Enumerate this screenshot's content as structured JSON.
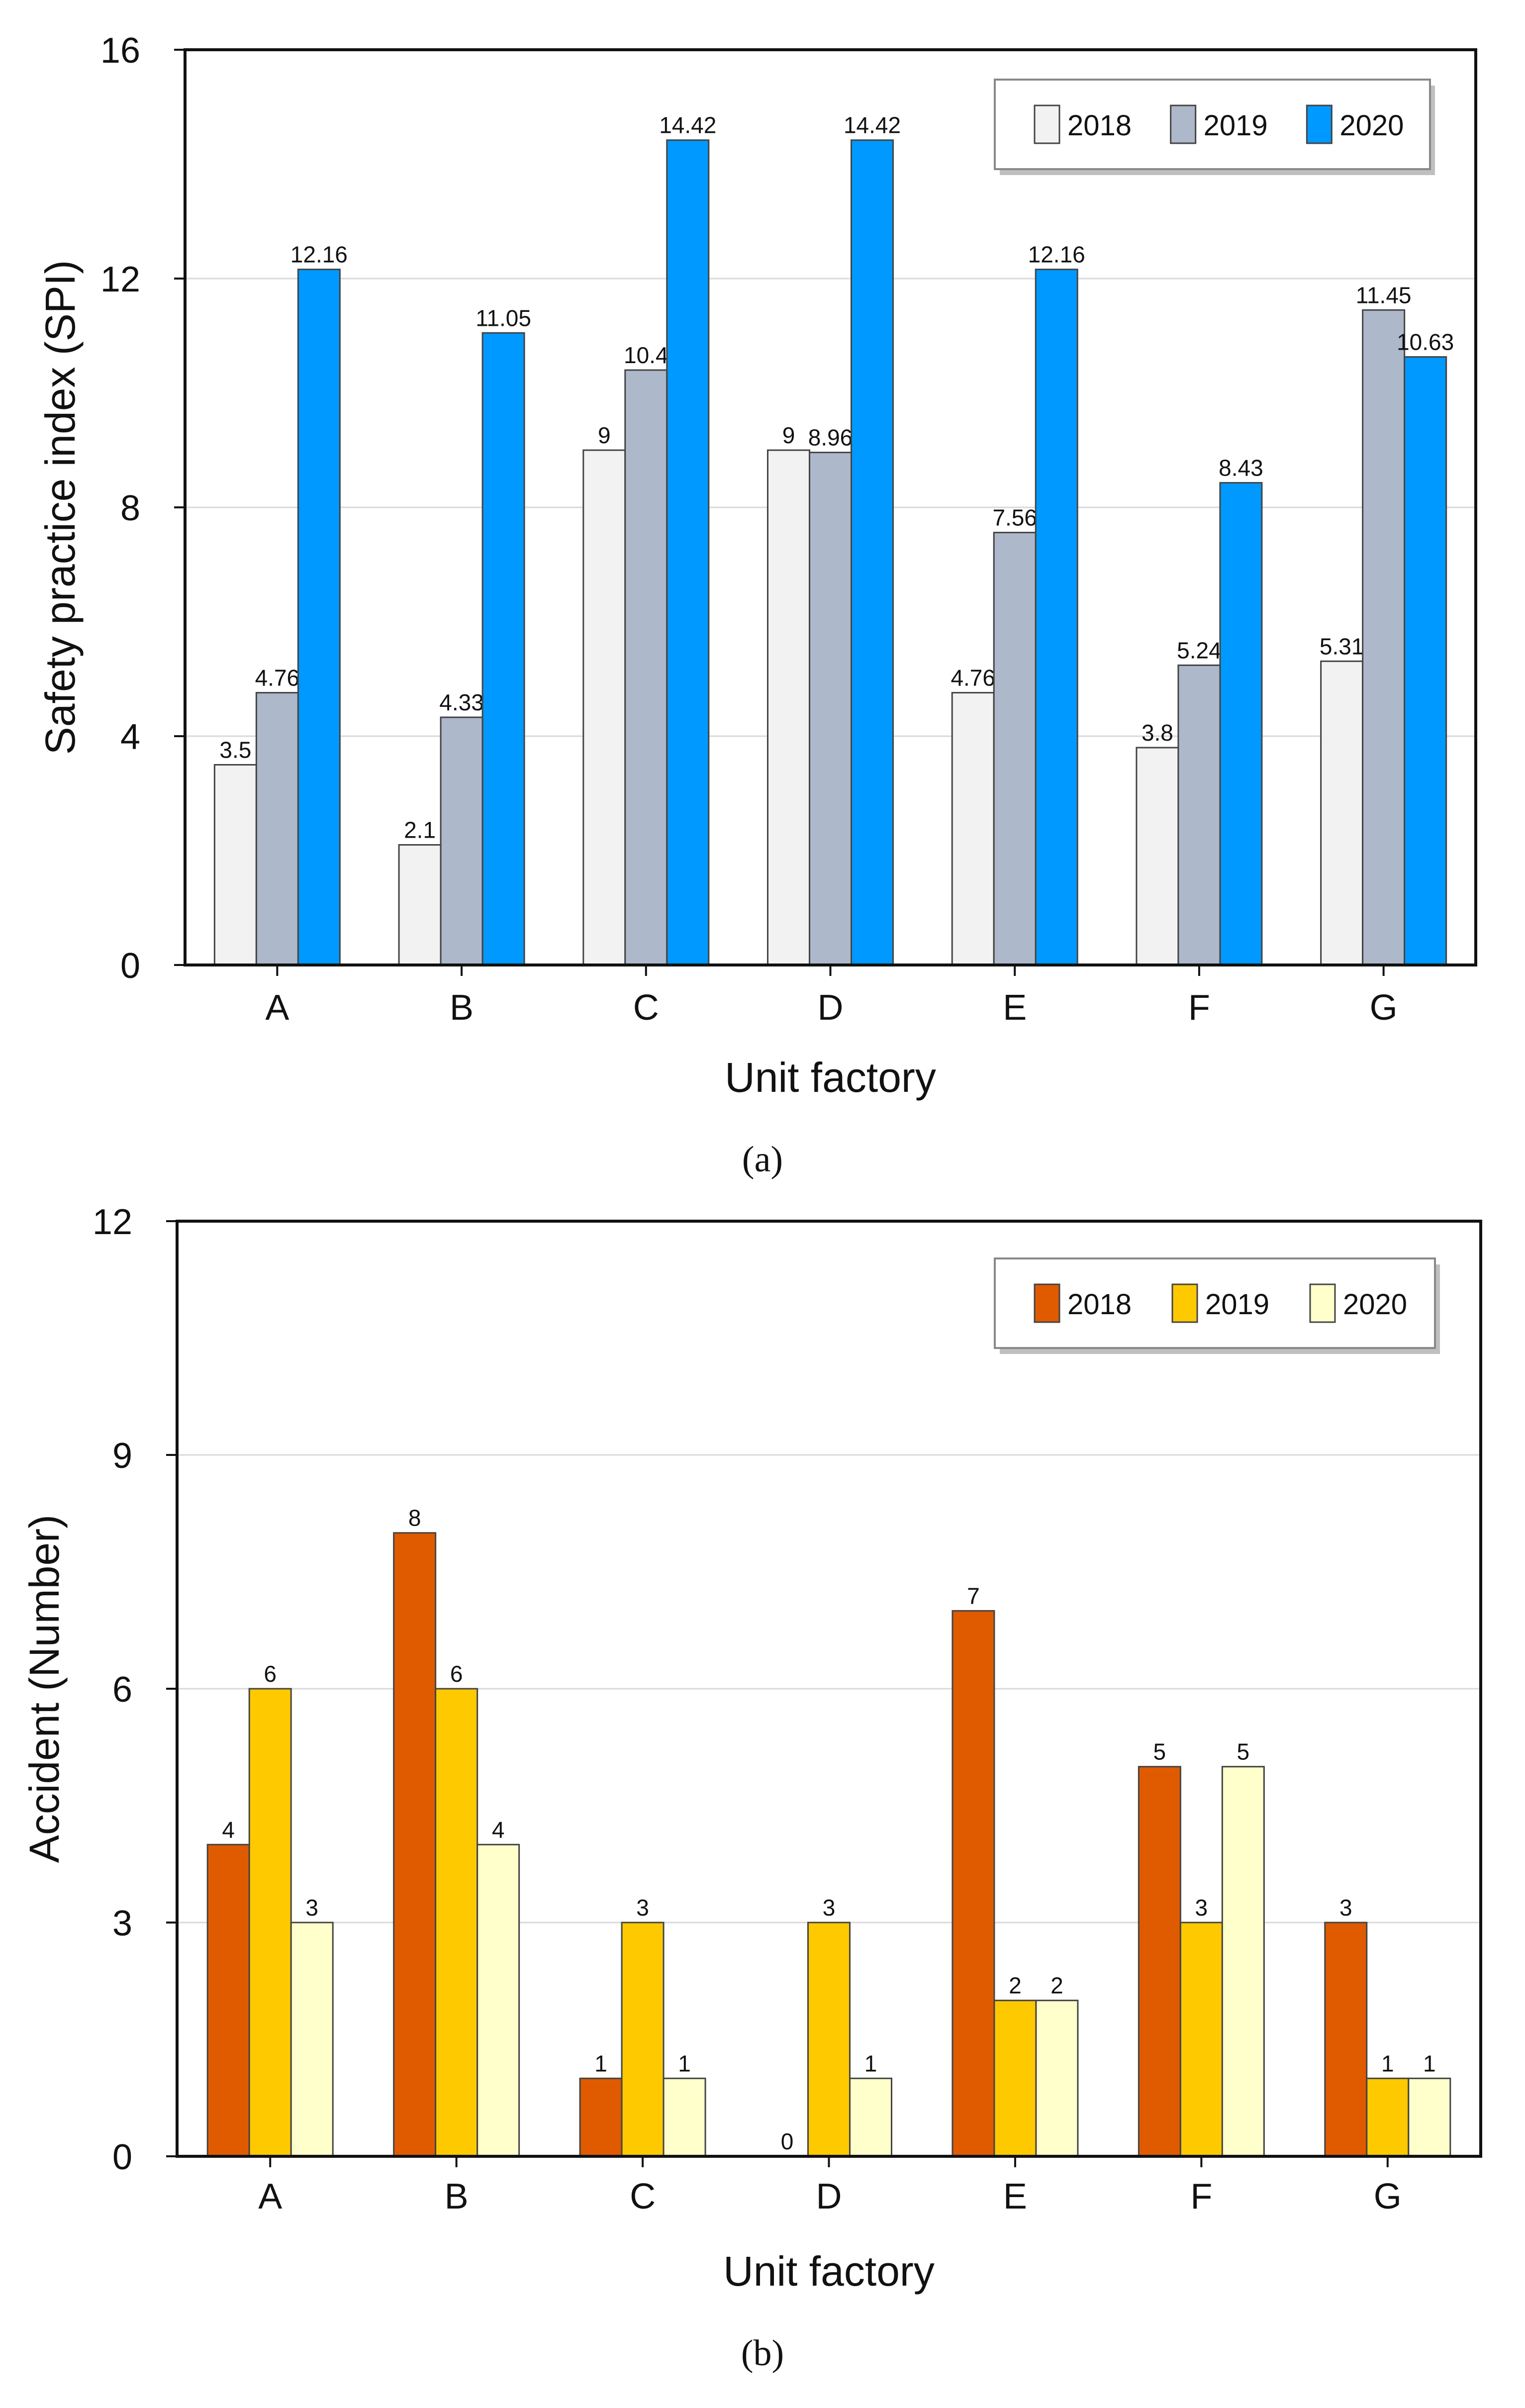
{
  "chart_data": [
    {
      "type": "bar",
      "title": "",
      "xlabel": "Unit factory",
      "ylabel": "Safety practice index (SPI)",
      "ylim": [
        0,
        16
      ],
      "yticks": [
        "0",
        "4",
        "8",
        "12",
        "16"
      ],
      "grid": true,
      "legend_position": "top-right",
      "categories": [
        "A",
        "B",
        "C",
        "D",
        "E",
        "F",
        "G"
      ],
      "series": [
        {
          "name": "2018",
          "color": "#f2f2f2",
          "values": [
            3.5,
            2.1,
            9,
            9,
            4.76,
            3.8,
            5.31
          ],
          "labels": [
            "3.5",
            "2.1",
            "9",
            "9",
            "4.76",
            "3.8",
            "5.31"
          ]
        },
        {
          "name": "2019",
          "color": "#adb9ca",
          "values": [
            4.76,
            4.33,
            10.4,
            8.96,
            7.56,
            5.24,
            11.45
          ],
          "labels": [
            "4.76",
            "4.33",
            "10.4",
            "8.96",
            "7.56",
            "5.24",
            "11.45"
          ]
        },
        {
          "name": "2020",
          "color": "#0099ff",
          "values": [
            12.16,
            11.05,
            14.42,
            14.42,
            12.16,
            8.43,
            10.63
          ],
          "labels": [
            "12.16",
            "11.05",
            "14.42",
            "14.42",
            "12.16",
            "8.43",
            "10.63"
          ]
        }
      ],
      "caption": "(a)"
    },
    {
      "type": "bar",
      "title": "",
      "xlabel": "Unit factory",
      "ylabel": "Accident (Number)",
      "ylim": [
        0,
        12
      ],
      "yticks": [
        "0",
        "3",
        "6",
        "9",
        "12"
      ],
      "grid": true,
      "legend_position": "top-right",
      "categories": [
        "A",
        "B",
        "C",
        "D",
        "E",
        "F",
        "G"
      ],
      "series": [
        {
          "name": "2018",
          "color": "#e05a00",
          "values": [
            4,
            8,
            1,
            0,
            7,
            5,
            3
          ],
          "labels": [
            "4",
            "8",
            "1",
            "0",
            "7",
            "5",
            "3"
          ]
        },
        {
          "name": "2019",
          "color": "#ffc900",
          "values": [
            6,
            6,
            3,
            3,
            2,
            3,
            1
          ],
          "labels": [
            "6",
            "6",
            "3",
            "3",
            "2",
            "3",
            "1"
          ]
        },
        {
          "name": "2020",
          "color": "#ffffcc",
          "values": [
            3,
            4,
            1,
            1,
            2,
            5,
            1
          ],
          "labels": [
            "3",
            "4",
            "1",
            "1",
            "2",
            "5",
            "1"
          ]
        }
      ],
      "caption": "(b)"
    }
  ]
}
